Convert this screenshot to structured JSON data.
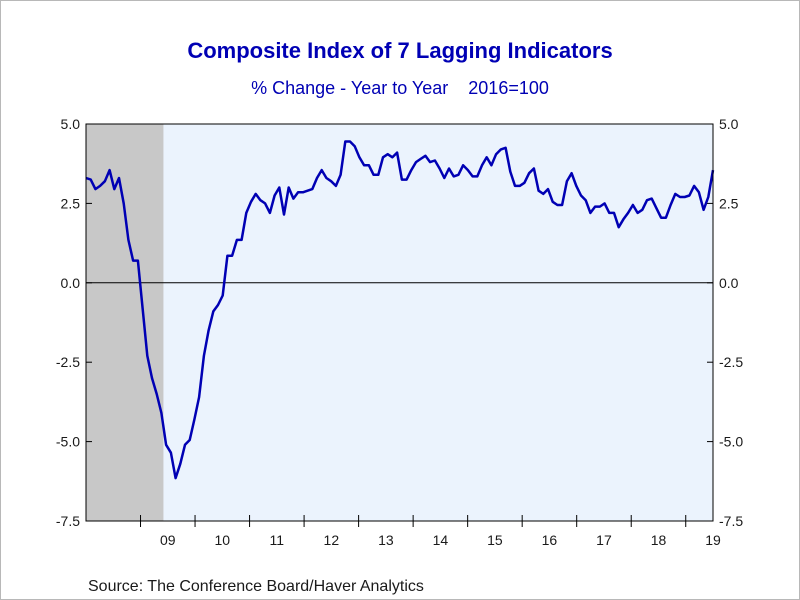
{
  "chart_data": {
    "type": "line",
    "title": "Composite Index of 7 Lagging Indicators",
    "subtitle": "% Change - Year to Year    2016=100",
    "source": "Source:  The Conference Board/Haver Analytics",
    "xlabel": "",
    "ylabel": "",
    "x_tick_labels": [
      "09",
      "10",
      "11",
      "12",
      "13",
      "14",
      "15",
      "16",
      "17",
      "18",
      "19"
    ],
    "x_tick_positions": [
      2009.5,
      2010.5,
      2011.5,
      2012.5,
      2013.5,
      2014.5,
      2015.5,
      2016.5,
      2017.5,
      2018.5,
      2019.5
    ],
    "xlim": [
      2008.0,
      2019.5
    ],
    "y_tick_labels": [
      "5.0",
      "2.5",
      "0.0",
      "-2.5",
      "-5.0",
      "-7.5"
    ],
    "y_tick_values": [
      5.0,
      2.5,
      0.0,
      -2.5,
      -5.0,
      -7.5
    ],
    "ylim": [
      -7.5,
      5.0
    ],
    "right_axis_mirrors_left": true,
    "zero_line": true,
    "grid": false,
    "recession_shading": [
      {
        "start": 2008.0,
        "end": 2009.42
      }
    ],
    "colors": {
      "line": "#0000b4",
      "plot_background": "#ebf3fd",
      "recession": "#c8c8c8",
      "text": "#0000b4",
      "tick_text": "#1a1a1a"
    },
    "series": [
      {
        "values": [
          3.3,
          3.25,
          2.95,
          3.05,
          3.2,
          3.55,
          2.95,
          3.3,
          2.5,
          1.35,
          0.7,
          0.7,
          -0.8,
          -2.3,
          -3.0,
          -3.5,
          -4.1,
          -5.1,
          -5.35,
          -6.15,
          -5.7,
          -5.1,
          -4.95,
          -4.3,
          -3.6,
          -2.3,
          -1.5,
          -0.9,
          -0.7,
          -0.4,
          0.85,
          0.85,
          1.35,
          1.35,
          2.2,
          2.55,
          2.8,
          2.6,
          2.5,
          2.2,
          2.75,
          3.0,
          2.15,
          3.0,
          2.65,
          2.85,
          2.85,
          2.9,
          2.95,
          3.3,
          3.55,
          3.3,
          3.2,
          3.05,
          3.4,
          4.45,
          4.45,
          4.3,
          3.95,
          3.7,
          3.7,
          3.4,
          3.4,
          3.95,
          4.05,
          3.95,
          4.1,
          3.25,
          3.25,
          3.55,
          3.8,
          3.9,
          4.0,
          3.8,
          3.85,
          3.6,
          3.3,
          3.6,
          3.35,
          3.4,
          3.7,
          3.55,
          3.35,
          3.35,
          3.7,
          3.95,
          3.7,
          4.05,
          4.2,
          4.25,
          3.5,
          3.05,
          3.05,
          3.15,
          3.45,
          3.6,
          2.9,
          2.8,
          2.95,
          2.55,
          2.45,
          2.45,
          3.2,
          3.45,
          3.05,
          2.75,
          2.6,
          2.2,
          2.4,
          2.4,
          2.5,
          2.2,
          2.2,
          1.75,
          2.0,
          2.2,
          2.45,
          2.2,
          2.3,
          2.6,
          2.65,
          2.35,
          2.05,
          2.05,
          2.45,
          2.8,
          2.7,
          2.7,
          2.75,
          3.05,
          2.85,
          2.3,
          2.7,
          3.55
        ]
      }
    ]
  }
}
